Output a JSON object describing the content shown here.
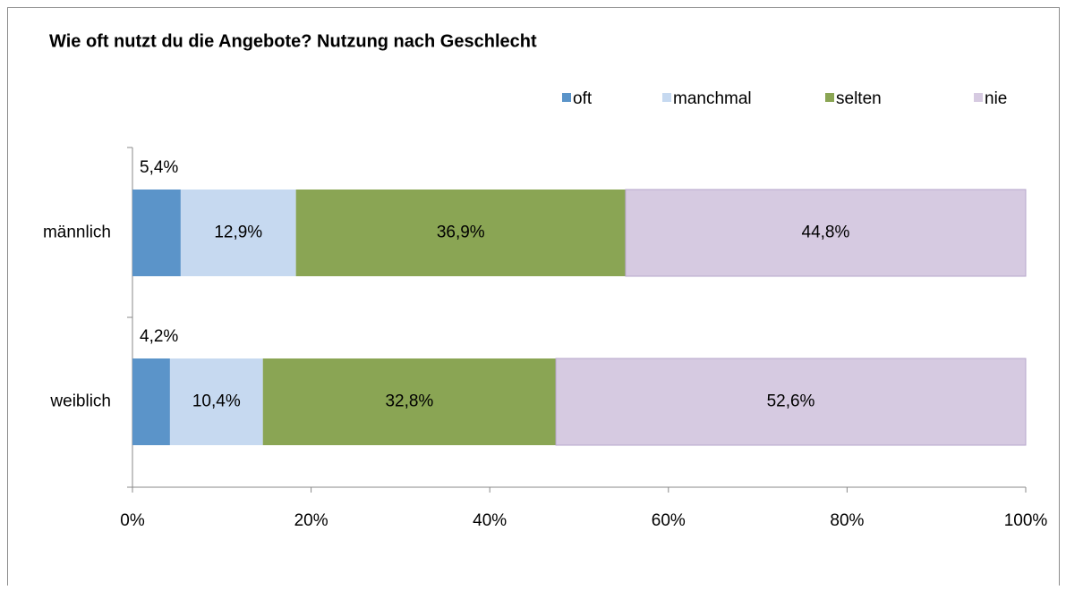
{
  "chart_data": {
    "type": "stacked_barh",
    "title": "Wie oft nutzt du die Angebote? Nutzung nach Geschlecht",
    "categories": [
      "männlich",
      "weiblich"
    ],
    "series": [
      {
        "name": "oft",
        "color": "#5b94c9",
        "values": [
          5.4,
          4.2
        ],
        "value_labels": [
          "5,4%",
          "4,2%"
        ]
      },
      {
        "name": "manchmal",
        "color": "#c6d9f0",
        "values": [
          12.9,
          10.4
        ],
        "value_labels": [
          "12,9%",
          "10,4%"
        ]
      },
      {
        "name": "selten",
        "color": "#8aa554",
        "values": [
          36.9,
          32.8
        ],
        "value_labels": [
          "36,9%",
          "32,8%"
        ]
      },
      {
        "name": "nie",
        "color": "#d6cae1",
        "values": [
          44.8,
          52.6
        ],
        "value_labels": [
          "44,8%",
          "52,6%"
        ]
      }
    ],
    "xlim": [
      0,
      100
    ],
    "xticks": [
      {
        "value": 0,
        "label": "0%"
      },
      {
        "value": 20,
        "label": "20%"
      },
      {
        "value": 40,
        "label": "40%"
      },
      {
        "value": 60,
        "label": "60%"
      },
      {
        "value": 80,
        "label": "80%"
      },
      {
        "value": 100,
        "label": "100%"
      }
    ],
    "legend": "top-right"
  }
}
